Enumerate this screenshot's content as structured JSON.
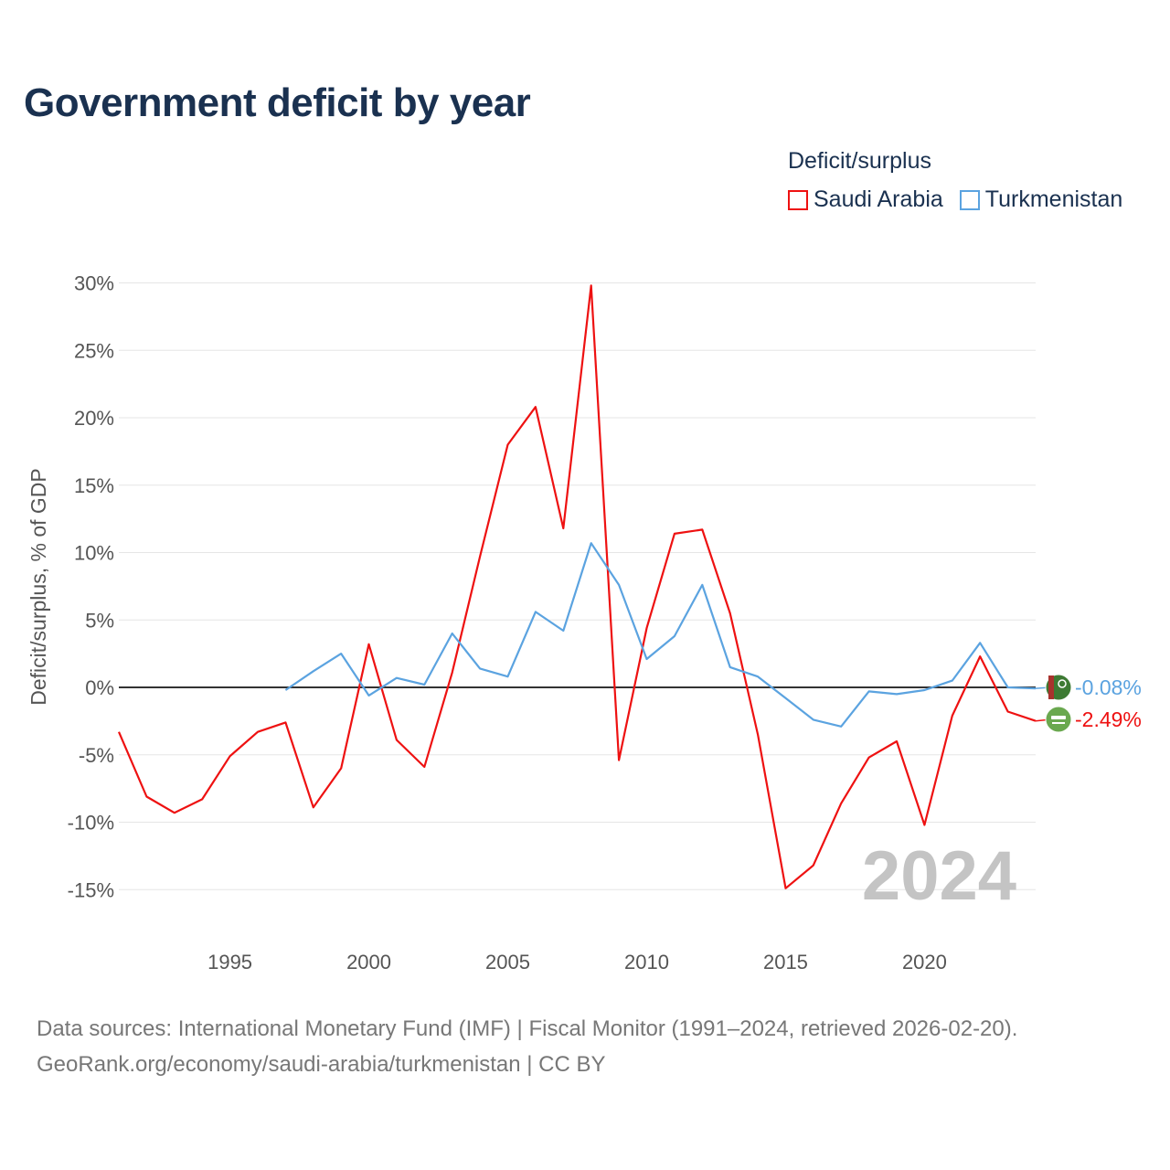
{
  "title": "Government deficit by year",
  "legend": {
    "title": "Deficit/surplus",
    "items": [
      {
        "label": "Saudi Arabia",
        "color": "#ee1111"
      },
      {
        "label": "Turkmenistan",
        "color": "#5ba3e0"
      }
    ]
  },
  "watermark_year": "2024",
  "footer": {
    "line1": "Data sources: International Monetary Fund (IMF) | Fiscal Monitor (1991–2024, retrieved 2026-02-20).",
    "line2": "GeoRank.org/economy/saudi-arabia/turkmenistan | CC BY"
  },
  "chart_data": {
    "type": "line",
    "title": "Government deficit by year",
    "xlabel": "",
    "ylabel": "Deficit/surplus, % of GDP",
    "xlim": [
      1991,
      2024
    ],
    "ylim": [
      -17,
      31
    ],
    "x_ticks": [
      1995,
      2000,
      2005,
      2010,
      2015,
      2020
    ],
    "y_ticks": [
      -15,
      -10,
      -5,
      0,
      5,
      10,
      15,
      20,
      25,
      30
    ],
    "y_tick_labels": [
      "-15%",
      "-10%",
      "-5%",
      "0%",
      "5%",
      "10%",
      "15%",
      "20%",
      "25%",
      "30%"
    ],
    "grid": true,
    "legend_position": "top-right",
    "series": [
      {
        "name": "Saudi Arabia",
        "color": "#ee1111",
        "x": [
          1991,
          1992,
          1993,
          1994,
          1995,
          1996,
          1997,
          1998,
          1999,
          2000,
          2001,
          2002,
          2003,
          2004,
          2005,
          2006,
          2007,
          2008,
          2009,
          2010,
          2011,
          2012,
          2013,
          2014,
          2015,
          2016,
          2017,
          2018,
          2019,
          2020,
          2021,
          2022,
          2023,
          2024
        ],
        "values": [
          -3.3,
          -8.1,
          -9.3,
          -8.3,
          -5.1,
          -3.3,
          -2.6,
          -8.9,
          -6.0,
          3.2,
          -3.9,
          -5.9,
          1.1,
          9.7,
          18.0,
          20.8,
          11.8,
          29.8,
          -5.4,
          4.4,
          11.4,
          11.7,
          5.5,
          -3.5,
          -14.9,
          -13.2,
          -8.6,
          -5.2,
          -4.0,
          -10.2,
          -2.1,
          2.3,
          -1.8,
          -2.49
        ],
        "end_label": "-2.49%"
      },
      {
        "name": "Turkmenistan",
        "color": "#5ba3e0",
        "x": [
          1997,
          1998,
          1999,
          2000,
          2001,
          2002,
          2003,
          2004,
          2005,
          2006,
          2007,
          2008,
          2009,
          2010,
          2011,
          2012,
          2013,
          2014,
          2015,
          2016,
          2017,
          2018,
          2019,
          2020,
          2021,
          2022,
          2023,
          2024
        ],
        "values": [
          -0.2,
          1.2,
          2.5,
          -0.6,
          0.7,
          0.2,
          4.0,
          1.4,
          0.8,
          5.6,
          4.2,
          10.7,
          7.6,
          2.1,
          3.8,
          7.6,
          1.5,
          0.8,
          -0.8,
          -2.4,
          -2.9,
          -0.3,
          -0.5,
          -0.2,
          0.5,
          3.3,
          0.0,
          -0.08
        ],
        "end_label": "-0.08%"
      }
    ]
  }
}
